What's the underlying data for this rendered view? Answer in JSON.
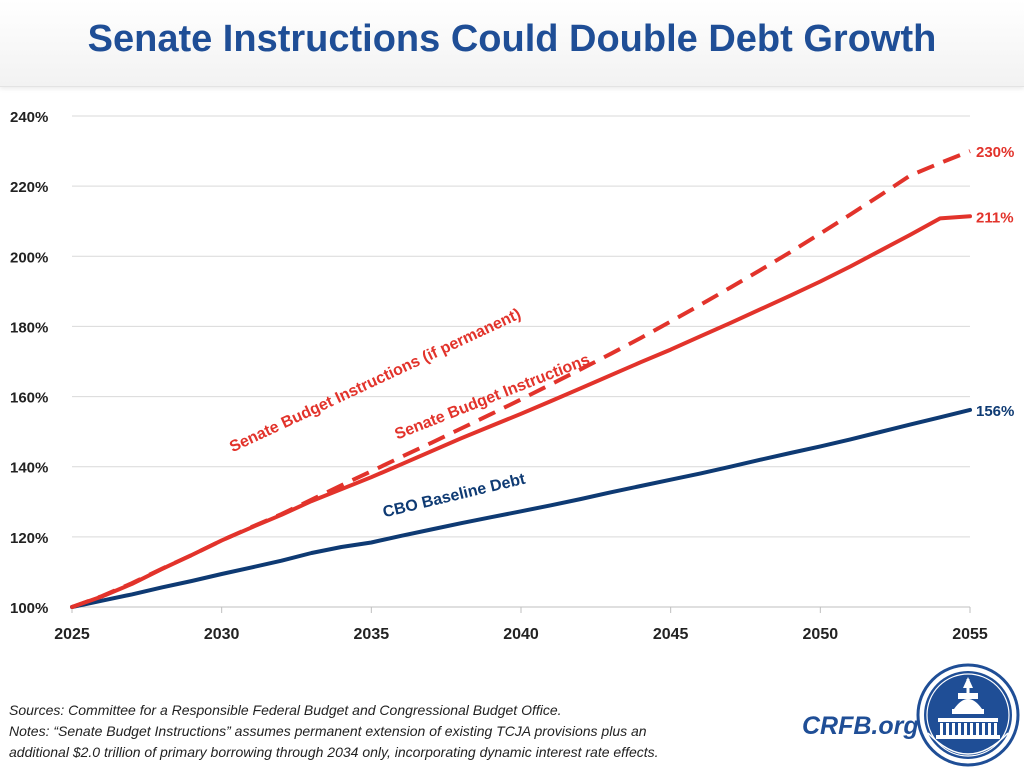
{
  "header": {
    "title": "Senate Instructions Could Double Debt Growth"
  },
  "footer": {
    "sources": "Sources: Committee for a Responsible Federal Budget and Congressional Budget Office.",
    "notes_line1": "Notes: “Senate Budget Instructions” assumes permanent extension of existing TCJA provisions plus an",
    "notes_line2": "additional $2.0 trillion of primary borrowing through 2034 only, incorporating dynamic interest rate effects.",
    "site": "CRFB.org"
  },
  "chart_data": {
    "type": "line",
    "title": "Senate Instructions Could Double Debt Growth",
    "xlabel": "",
    "ylabel": "",
    "xlim": [
      2025,
      2055
    ],
    "ylim": [
      100,
      240
    ],
    "x_ticks": [
      2025,
      2030,
      2035,
      2040,
      2045,
      2050,
      2055
    ],
    "x_tick_labels": [
      "2025",
      "2030",
      "2035",
      "2040",
      "2045",
      "2050",
      "2055"
    ],
    "y_ticks": [
      100,
      120,
      140,
      160,
      180,
      200,
      220,
      240
    ],
    "y_tick_labels": [
      "100%",
      "120%",
      "140%",
      "160%",
      "180%",
      "200%",
      "220%",
      "240%"
    ],
    "grid": "horizontal",
    "legend": "none (inline labels)",
    "series": [
      {
        "name": "CBO Baseline Debt",
        "color": "#0e3a73",
        "style": "solid",
        "x": [
          2025,
          2026,
          2027,
          2028,
          2029,
          2030,
          2031,
          2032,
          2033,
          2034,
          2035,
          2036,
          2037,
          2038,
          2039,
          2040,
          2041,
          2042,
          2043,
          2044,
          2045,
          2046,
          2047,
          2048,
          2049,
          2050,
          2051,
          2052,
          2053,
          2054,
          2055
        ],
        "values": [
          100,
          101.8,
          103.6,
          105.6,
          107.4,
          109.4,
          111.3,
          113.2,
          115.4,
          117.1,
          118.4,
          120.3,
          122.1,
          123.9,
          125.6,
          127.3,
          129.0,
          130.8,
          132.7,
          134.5,
          136.3,
          138.1,
          140.0,
          142.0,
          143.9,
          145.8,
          147.8,
          149.9,
          152.0,
          154.1,
          156.2
        ],
        "end_label": "156%"
      },
      {
        "name": "Senate Budget Instructions",
        "color": "#e2332b",
        "style": "solid",
        "x": [
          2025,
          2026,
          2027,
          2028,
          2029,
          2030,
          2031,
          2032,
          2033,
          2034,
          2035,
          2036,
          2037,
          2038,
          2039,
          2040,
          2041,
          2042,
          2043,
          2044,
          2045,
          2046,
          2047,
          2048,
          2049,
          2050,
          2051,
          2052,
          2053,
          2054,
          2055
        ],
        "values": [
          100,
          103.0,
          106.6,
          110.8,
          114.8,
          119.0,
          122.7,
          126.3,
          130.2,
          133.6,
          137.0,
          140.7,
          144.4,
          148.1,
          151.6,
          155.1,
          158.7,
          162.4,
          166.1,
          169.8,
          173.4,
          177.2,
          181.0,
          184.9,
          188.8,
          192.8,
          197.1,
          201.6,
          206.1,
          210.8,
          211.4
        ],
        "end_label": "211%"
      },
      {
        "name": "Senate Budget Instructions (if permanent)",
        "color": "#e2332b",
        "style": "dashed",
        "x": [
          2025,
          2026,
          2027,
          2028,
          2029,
          2030,
          2031,
          2032,
          2033,
          2034,
          2035,
          2036,
          2037,
          2038,
          2039,
          2040,
          2041,
          2042,
          2043,
          2044,
          2045,
          2046,
          2047,
          2048,
          2049,
          2050,
          2051,
          2052,
          2053,
          2054,
          2055
        ],
        "values": [
          100,
          103.1,
          106.8,
          110.9,
          114.8,
          119.0,
          122.8,
          126.5,
          130.6,
          134.7,
          138.7,
          142.8,
          146.8,
          150.9,
          155.0,
          159.2,
          163.5,
          167.8,
          172.2,
          176.7,
          181.4,
          186.2,
          191.1,
          196.1,
          201.2,
          206.5,
          211.9,
          217.4,
          223.0,
          226.6,
          230.0
        ],
        "end_label": "230%"
      }
    ]
  }
}
